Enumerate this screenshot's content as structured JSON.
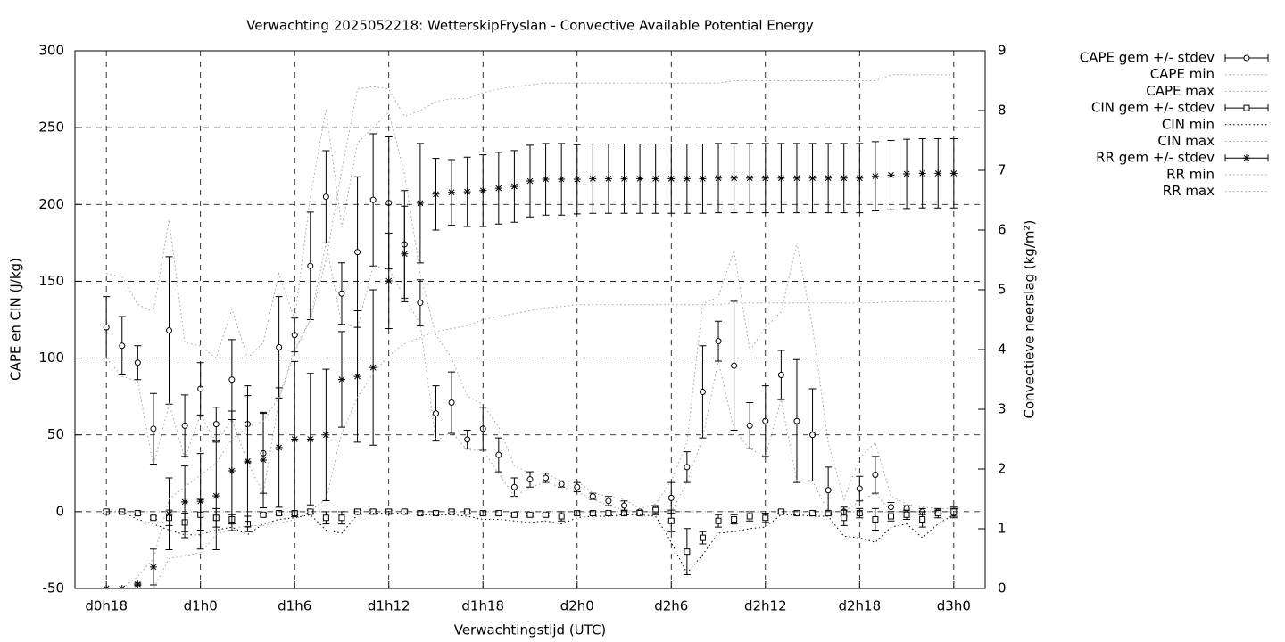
{
  "chart_data": {
    "type": "errorbar-line",
    "title": "Verwachting 2025052218: WetterskipFryslan - Convective Available Potential Energy",
    "xlabel": "Verwachtingstijd (UTC)",
    "ylabel": "CAPE en CIN (J/kg)",
    "y2label": "Convectieve neerslag (kg/m²)",
    "x": [
      18,
      19,
      20,
      21,
      22,
      23,
      24,
      25,
      26,
      27,
      28,
      29,
      30,
      31,
      32,
      33,
      34,
      35,
      36,
      37,
      38,
      39,
      40,
      41,
      42,
      43,
      44,
      45,
      46,
      47,
      48,
      49,
      50,
      51,
      52,
      53,
      54,
      55,
      56,
      57,
      58,
      59,
      60,
      61,
      62,
      63,
      64,
      65,
      66,
      67,
      68,
      69,
      70,
      71,
      72
    ],
    "xlim": [
      16,
      74
    ],
    "xticks": [
      {
        "value": 18,
        "label": "d0h18"
      },
      {
        "value": 24,
        "label": "d1h0"
      },
      {
        "value": 30,
        "label": "d1h6"
      },
      {
        "value": 36,
        "label": "d1h12"
      },
      {
        "value": 42,
        "label": "d1h18"
      },
      {
        "value": 48,
        "label": "d2h0"
      },
      {
        "value": 54,
        "label": "d2h6"
      },
      {
        "value": 60,
        "label": "d2h12"
      },
      {
        "value": 66,
        "label": "d2h18"
      },
      {
        "value": 72,
        "label": "d3h0"
      }
    ],
    "ylim": [
      -50,
      300
    ],
    "yticks": [
      -50,
      0,
      50,
      100,
      150,
      200,
      250,
      300
    ],
    "y2lim": [
      0,
      9
    ],
    "y2ticks": [
      0,
      1,
      2,
      3,
      4,
      5,
      6,
      7,
      8,
      9
    ],
    "grid": true,
    "legend": "outside-right-top",
    "series": [
      {
        "name": "CAPE gem +/- stdev",
        "style": "errorbars",
        "marker": "circle",
        "color": "#000000",
        "axis": "y",
        "values": [
          120,
          108,
          97,
          54,
          118,
          56,
          80,
          57,
          86,
          57,
          38,
          107,
          115,
          160,
          205,
          142,
          169,
          203,
          201,
          174,
          136,
          64,
          71,
          47,
          54,
          37,
          16,
          21,
          22,
          18,
          16,
          10,
          7,
          4,
          0,
          2,
          9,
          29,
          78,
          111,
          95,
          56,
          59,
          89,
          59,
          50,
          14,
          0,
          15,
          24,
          3,
          2,
          0,
          0,
          -1
        ],
        "errors": [
          20,
          19,
          11,
          23,
          48,
          20,
          17,
          11,
          26,
          25,
          26,
          33,
          11,
          35,
          30,
          20,
          49,
          43,
          43,
          35,
          15,
          18,
          20,
          6,
          14,
          11,
          6,
          5,
          3,
          2,
          3,
          2,
          3,
          3,
          1,
          2,
          10,
          10,
          30,
          13,
          42,
          15,
          23,
          16,
          40,
          30,
          15,
          3,
          8,
          12,
          3,
          2,
          2,
          1,
          3
        ]
      },
      {
        "name": "CAPE min",
        "style": "dotted",
        "color": "#a0a0a0",
        "axis": "y",
        "values": [
          100,
          88,
          85,
          30,
          70,
          35,
          63,
          45,
          60,
          32,
          12,
          73,
          104,
          125,
          175,
          122,
          120,
          160,
          158,
          140,
          122,
          46,
          52,
          40,
          40,
          25,
          10,
          16,
          19,
          16,
          13,
          8,
          4,
          1,
          0,
          0,
          0,
          19,
          48,
          98,
          53,
          41,
          36,
          73,
          20,
          20,
          0,
          0,
          7,
          12,
          0,
          0,
          0,
          0,
          0
        ]
      },
      {
        "name": "CAPE max",
        "style": "dotted",
        "color": "#a0a0a0",
        "axis": "y",
        "values": [
          155,
          153,
          135,
          130,
          190,
          110,
          108,
          100,
          132,
          100,
          110,
          155,
          125,
          205,
          262,
          185,
          240,
          250,
          260,
          220,
          155,
          115,
          100,
          75,
          70,
          55,
          30,
          25,
          25,
          20,
          20,
          12,
          10,
          8,
          2,
          5,
          20,
          45,
          135,
          140,
          170,
          105,
          120,
          130,
          175,
          120,
          45,
          8,
          35,
          45,
          10,
          5,
          3,
          2,
          2
        ]
      },
      {
        "name": "CIN gem +/- stdev",
        "style": "errorbars",
        "marker": "square",
        "color": "#000000",
        "axis": "y",
        "values": [
          0,
          0,
          -1,
          -4,
          -4,
          -7,
          -2,
          -4,
          -5,
          -8,
          -2,
          -1,
          -1,
          0,
          -4,
          -4,
          0,
          0,
          0,
          0,
          -1,
          -1,
          0,
          0,
          -1,
          -1,
          -2,
          -2,
          -2,
          -3,
          -1,
          -1,
          -1,
          -1,
          -1,
          1,
          -6,
          -26,
          -17,
          -6,
          -5,
          -3,
          -4,
          0,
          -1,
          -1,
          -1,
          -4,
          -1,
          -5,
          -3,
          -2,
          -5,
          -1,
          0
        ],
        "errors": [
          1,
          1,
          1,
          1,
          5,
          6,
          10,
          6,
          3,
          5,
          1,
          1,
          1,
          1,
          4,
          4,
          1,
          1,
          1,
          1,
          1,
          1,
          1,
          1,
          1,
          1,
          1,
          1,
          1,
          3,
          1,
          1,
          1,
          1,
          1,
          3,
          7,
          15,
          4,
          4,
          3,
          3,
          3,
          1,
          1,
          1,
          1,
          5,
          3,
          7,
          3,
          3,
          5,
          3,
          3
        ]
      },
      {
        "name": "CIN min",
        "style": "dotted",
        "color": "#000000",
        "axis": "y",
        "values": [
          0,
          0,
          -5,
          -8,
          -12,
          -15,
          -15,
          -12,
          -10,
          -15,
          -8,
          -5,
          -4,
          -2,
          -12,
          -14,
          -2,
          -1,
          -1,
          -1,
          -2,
          -2,
          -2,
          -3,
          -5,
          -5,
          -6,
          -7,
          -6,
          -8,
          -4,
          -3,
          -3,
          -2,
          -2,
          -3,
          -20,
          -40,
          -28,
          -14,
          -13,
          -11,
          -10,
          -2,
          -2,
          -3,
          -3,
          -16,
          -17,
          -20,
          -10,
          -8,
          -17,
          -8,
          -2
        ]
      },
      {
        "name": "CIN max",
        "style": "dotted",
        "color": "#a0a0a0",
        "axis": "y",
        "values": [
          0,
          0,
          0,
          0,
          0,
          0,
          0,
          0,
          0,
          0,
          0,
          0,
          0,
          0,
          0,
          0,
          0,
          0,
          0,
          0,
          0,
          0,
          0,
          0,
          0,
          0,
          0,
          0,
          0,
          0,
          0,
          0,
          0,
          0,
          0,
          0,
          0,
          0,
          0,
          0,
          0,
          0,
          0,
          0,
          0,
          0,
          0,
          0,
          0,
          0,
          0,
          0,
          0,
          0,
          0
        ]
      },
      {
        "name": "RR gem +/- stdev",
        "style": "errorbars",
        "marker": "star",
        "color": "#000000",
        "axis": "y2",
        "values": [
          0,
          0,
          0.07,
          0.36,
          1.25,
          1.45,
          1.46,
          1.55,
          1.97,
          2.13,
          2.15,
          2.36,
          2.5,
          2.5,
          2.57,
          3.5,
          3.55,
          3.7,
          5.15,
          5.6,
          6.45,
          6.6,
          6.63,
          6.64,
          6.66,
          6.7,
          6.73,
          6.82,
          6.85,
          6.85,
          6.85,
          6.86,
          6.86,
          6.86,
          6.86,
          6.86,
          6.86,
          6.86,
          6.86,
          6.87,
          6.87,
          6.87,
          6.87,
          6.87,
          6.87,
          6.87,
          6.87,
          6.87,
          6.87,
          6.9,
          6.92,
          6.94,
          6.95,
          6.95,
          6.95
        ],
        "errors": [
          0,
          0,
          0.02,
          0.3,
          0.6,
          0.6,
          0.8,
          0.9,
          1.0,
          1.1,
          0.8,
          1.0,
          1.3,
          1.1,
          1.1,
          0.8,
          1.1,
          1.3,
          0.8,
          0.8,
          1.0,
          0.6,
          0.55,
          0.58,
          0.6,
          0.6,
          0.6,
          0.6,
          0.6,
          0.6,
          0.58,
          0.58,
          0.58,
          0.58,
          0.58,
          0.58,
          0.58,
          0.58,
          0.58,
          0.58,
          0.58,
          0.58,
          0.58,
          0.58,
          0.58,
          0.58,
          0.58,
          0.58,
          0.58,
          0.58,
          0.58,
          0.58,
          0.58,
          0.58,
          0.58
        ]
      },
      {
        "name": "RR min",
        "style": "dotted",
        "color": "#a0a0a0",
        "axis": "y2",
        "values": [
          0,
          0,
          0,
          0,
          0.5,
          0.55,
          0.6,
          0.9,
          1.0,
          1.05,
          1.05,
          1.1,
          1.15,
          1.3,
          1.5,
          2.6,
          3.2,
          3.6,
          3.9,
          4.1,
          4.2,
          4.3,
          4.35,
          4.4,
          4.5,
          4.55,
          4.6,
          4.65,
          4.7,
          4.72,
          4.75,
          4.75,
          4.75,
          4.75,
          4.75,
          4.75,
          4.75,
          4.75,
          4.75,
          4.75,
          4.78,
          4.78,
          4.78,
          4.78,
          4.78,
          4.78,
          4.78,
          4.78,
          4.78,
          4.78,
          4.8,
          4.8,
          4.8,
          4.8,
          4.8
        ]
      },
      {
        "name": "RR max",
        "style": "dotted",
        "color": "#a0a0a0",
        "axis": "y2",
        "values": [
          0,
          0,
          0.2,
          0.5,
          1.5,
          1.7,
          1.9,
          2.1,
          2.5,
          2.7,
          2.8,
          3.2,
          4.0,
          4.5,
          5.5,
          7.0,
          8.36,
          8.4,
          8.36,
          7.9,
          8.0,
          8.15,
          8.2,
          8.2,
          8.3,
          8.36,
          8.4,
          8.43,
          8.46,
          8.46,
          8.46,
          8.46,
          8.46,
          8.46,
          8.46,
          8.46,
          8.46,
          8.46,
          8.46,
          8.46,
          8.5,
          8.5,
          8.5,
          8.5,
          8.5,
          8.5,
          8.5,
          8.5,
          8.5,
          8.5,
          8.6,
          8.6,
          8.6,
          8.6,
          8.6
        ]
      }
    ]
  }
}
